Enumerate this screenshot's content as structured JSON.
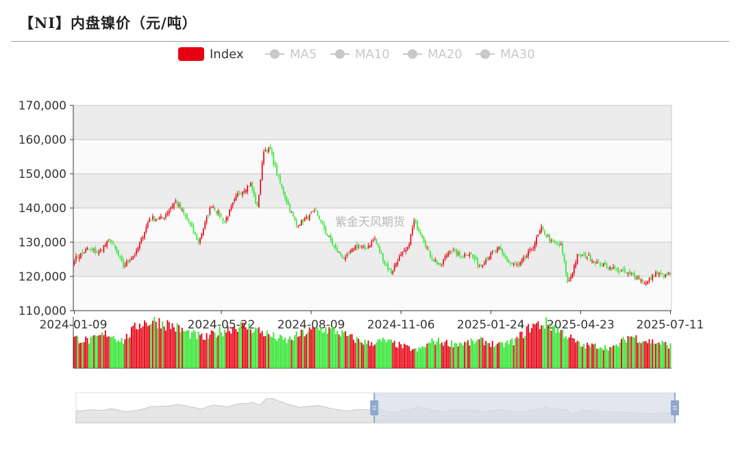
{
  "title": "【NI】内盘镍价（元/吨）",
  "watermark": "紫金天风期货",
  "legend": [
    {
      "label": "Index",
      "active": true,
      "color": "#e60012"
    },
    {
      "label": "MA5",
      "active": false,
      "color": "#c8c8c8"
    },
    {
      "label": "MA10",
      "active": false,
      "color": "#c8c8c8"
    },
    {
      "label": "MA20",
      "active": false,
      "color": "#c8c8c8"
    },
    {
      "label": "MA30",
      "active": false,
      "color": "#c8c8c8"
    }
  ],
  "colors": {
    "up": "#e60012",
    "down": "#2ee62e",
    "band_dark": "#ececec",
    "band_light": "#fafafa",
    "grid": "#c8c8c8",
    "slider_fill": "#d6dde8",
    "slider_handle": "#8fa7c9"
  },
  "slider": {
    "start": 0.498,
    "end": 1.0
  },
  "chart_data": {
    "type": "candlestick",
    "ylim": [
      110000,
      170000
    ],
    "ytick_values": [
      110000,
      120000,
      130000,
      140000,
      150000,
      160000,
      170000
    ],
    "ytick_labels": [
      "110,000",
      "120,000",
      "130,000",
      "140,000",
      "150,000",
      "160,000",
      "170,000"
    ],
    "xtick_labels": [
      "2024-01-09",
      "2024-05-22",
      "2024-08-09",
      "2024-11-06",
      "2025-01-24",
      "2025-04-23",
      "2025-07-11"
    ],
    "xtick_index": [
      0,
      90,
      145,
      200,
      255,
      310,
      365
    ],
    "n_days": 366,
    "close_anchors": [
      [
        0,
        125000
      ],
      [
        8,
        128000
      ],
      [
        15,
        127000
      ],
      [
        22,
        131000
      ],
      [
        30,
        123000
      ],
      [
        38,
        127000
      ],
      [
        46,
        137000
      ],
      [
        54,
        137000
      ],
      [
        62,
        142000
      ],
      [
        70,
        136000
      ],
      [
        76,
        130000
      ],
      [
        84,
        141000
      ],
      [
        92,
        136000
      ],
      [
        100,
        144000
      ],
      [
        108,
        147000
      ],
      [
        112,
        140000
      ],
      [
        116,
        157000
      ],
      [
        120,
        157000
      ],
      [
        124,
        150000
      ],
      [
        130,
        142000
      ],
      [
        136,
        135000
      ],
      [
        142,
        137000
      ],
      [
        148,
        139000
      ],
      [
        154,
        133000
      ],
      [
        160,
        128000
      ],
      [
        166,
        125000
      ],
      [
        172,
        129000
      ],
      [
        178,
        128000
      ],
      [
        184,
        131000
      ],
      [
        190,
        124000
      ],
      [
        194,
        121000
      ],
      [
        198,
        125000
      ],
      [
        204,
        128000
      ],
      [
        208,
        136000
      ],
      [
        212,
        133000
      ],
      [
        218,
        126000
      ],
      [
        224,
        123000
      ],
      [
        230,
        128000
      ],
      [
        236,
        126000
      ],
      [
        242,
        127000
      ],
      [
        248,
        123000
      ],
      [
        254,
        126000
      ],
      [
        260,
        128000
      ],
      [
        266,
        124000
      ],
      [
        272,
        123000
      ],
      [
        280,
        128000
      ],
      [
        286,
        134000
      ],
      [
        292,
        130000
      ],
      [
        298,
        129000
      ],
      [
        300,
        124000
      ],
      [
        302,
        118000
      ],
      [
        304,
        120000
      ],
      [
        308,
        126000
      ],
      [
        314,
        126000
      ],
      [
        320,
        124000
      ],
      [
        326,
        123000
      ],
      [
        332,
        122000
      ],
      [
        338,
        121000
      ],
      [
        344,
        120000
      ],
      [
        350,
        118000
      ],
      [
        356,
        121000
      ],
      [
        362,
        120000
      ],
      [
        365,
        121000
      ]
    ],
    "volume_anchors": [
      [
        0,
        0.6
      ],
      [
        10,
        0.55
      ],
      [
        20,
        0.7
      ],
      [
        30,
        0.55
      ],
      [
        40,
        0.9
      ],
      [
        50,
        0.95
      ],
      [
        60,
        0.85
      ],
      [
        70,
        0.7
      ],
      [
        80,
        0.6
      ],
      [
        90,
        0.75
      ],
      [
        100,
        0.85
      ],
      [
        110,
        0.8
      ],
      [
        120,
        0.65
      ],
      [
        130,
        0.55
      ],
      [
        140,
        0.7
      ],
      [
        150,
        0.8
      ],
      [
        160,
        0.75
      ],
      [
        170,
        0.6
      ],
      [
        180,
        0.5
      ],
      [
        190,
        0.55
      ],
      [
        200,
        0.45
      ],
      [
        210,
        0.35
      ],
      [
        220,
        0.55
      ],
      [
        230,
        0.5
      ],
      [
        240,
        0.5
      ],
      [
        250,
        0.55
      ],
      [
        260,
        0.45
      ],
      [
        270,
        0.55
      ],
      [
        280,
        0.85
      ],
      [
        290,
        0.9
      ],
      [
        300,
        0.7
      ],
      [
        310,
        0.45
      ],
      [
        320,
        0.45
      ],
      [
        330,
        0.4
      ],
      [
        340,
        0.65
      ],
      [
        350,
        0.55
      ],
      [
        360,
        0.5
      ],
      [
        365,
        0.45
      ]
    ]
  }
}
